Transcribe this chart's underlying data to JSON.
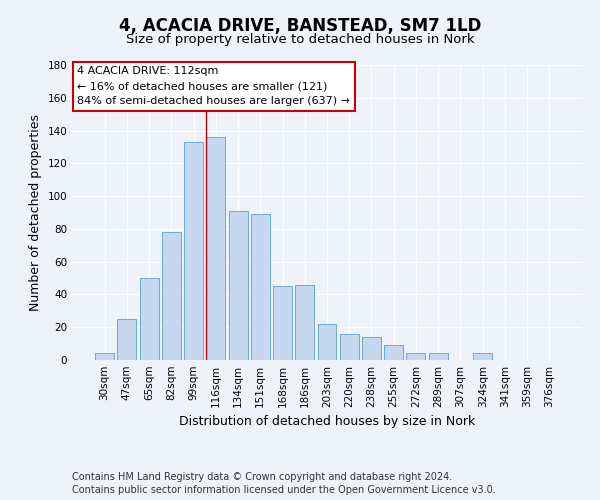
{
  "title": "4, ACACIA DRIVE, BANSTEAD, SM7 1LD",
  "subtitle": "Size of property relative to detached houses in Nork",
  "xlabel": "Distribution of detached houses by size in Nork",
  "ylabel": "Number of detached properties",
  "bar_labels": [
    "30sqm",
    "47sqm",
    "65sqm",
    "82sqm",
    "99sqm",
    "116sqm",
    "134sqm",
    "151sqm",
    "168sqm",
    "186sqm",
    "203sqm",
    "220sqm",
    "238sqm",
    "255sqm",
    "272sqm",
    "289sqm",
    "307sqm",
    "324sqm",
    "341sqm",
    "359sqm",
    "376sqm"
  ],
  "bar_values": [
    4,
    25,
    50,
    78,
    133,
    136,
    91,
    89,
    45,
    46,
    22,
    16,
    14,
    9,
    4,
    4,
    0,
    4,
    0,
    0,
    0
  ],
  "bar_color": "#c5d8f0",
  "bar_edge_color": "#6aaad4",
  "background_color": "#eef3fa",
  "red_line_bin_index": 5,
  "ylim": [
    0,
    180
  ],
  "yticks": [
    0,
    20,
    40,
    60,
    80,
    100,
    120,
    140,
    160,
    180
  ],
  "annotation_title": "4 ACACIA DRIVE: 112sqm",
  "annotation_line1": "← 16% of detached houses are smaller (121)",
  "annotation_line2": "84% of semi-detached houses are larger (637) →",
  "annotation_box_color": "#ffffff",
  "annotation_box_edge": "#cc0000",
  "footer_line1": "Contains HM Land Registry data © Crown copyright and database right 2024.",
  "footer_line2": "Contains public sector information licensed under the Open Government Licence v3.0.",
  "grid_color": "#ffffff",
  "title_fontsize": 12,
  "subtitle_fontsize": 9.5,
  "axis_label_fontsize": 9,
  "tick_fontsize": 7.5,
  "footer_fontsize": 7,
  "annotation_fontsize": 8
}
